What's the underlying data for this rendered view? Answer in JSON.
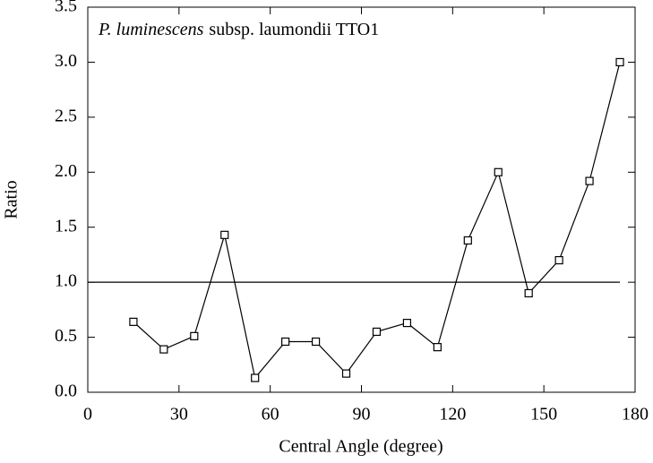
{
  "chart_data": {
    "type": "line",
    "annotation": {
      "species": "P. luminescens",
      "strain": "subsp. laumondii TTO1"
    },
    "x_label": "Central Angle (degree)",
    "y_label": "Ratio",
    "x": [
      15,
      25,
      35,
      45,
      55,
      65,
      75,
      85,
      95,
      105,
      115,
      125,
      135,
      145,
      155,
      165,
      175
    ],
    "series": [
      {
        "color": "#000000",
        "values": [
          0.64,
          0.39,
          0.51,
          1.43,
          0.13,
          0.46,
          0.46,
          0.17,
          0.55,
          0.63,
          0.41,
          1.38,
          2.0,
          0.9,
          1.2,
          1.92,
          3.0
        ]
      }
    ],
    "reference_line": 1,
    "xlim": [
      0,
      180
    ],
    "xticks": [
      0,
      30,
      60,
      90,
      120,
      150,
      180
    ],
    "ylim": [
      0,
      3.5
    ],
    "yticks": [
      {
        "value": 0,
        "label": "0.0"
      },
      0.5,
      {
        "value": 1,
        "label": "1.0"
      },
      1.5,
      {
        "value": 2,
        "label": "2.0"
      },
      2.5,
      {
        "value": 3,
        "label": "3.0"
      },
      3.5
    ],
    "grid": false
  }
}
